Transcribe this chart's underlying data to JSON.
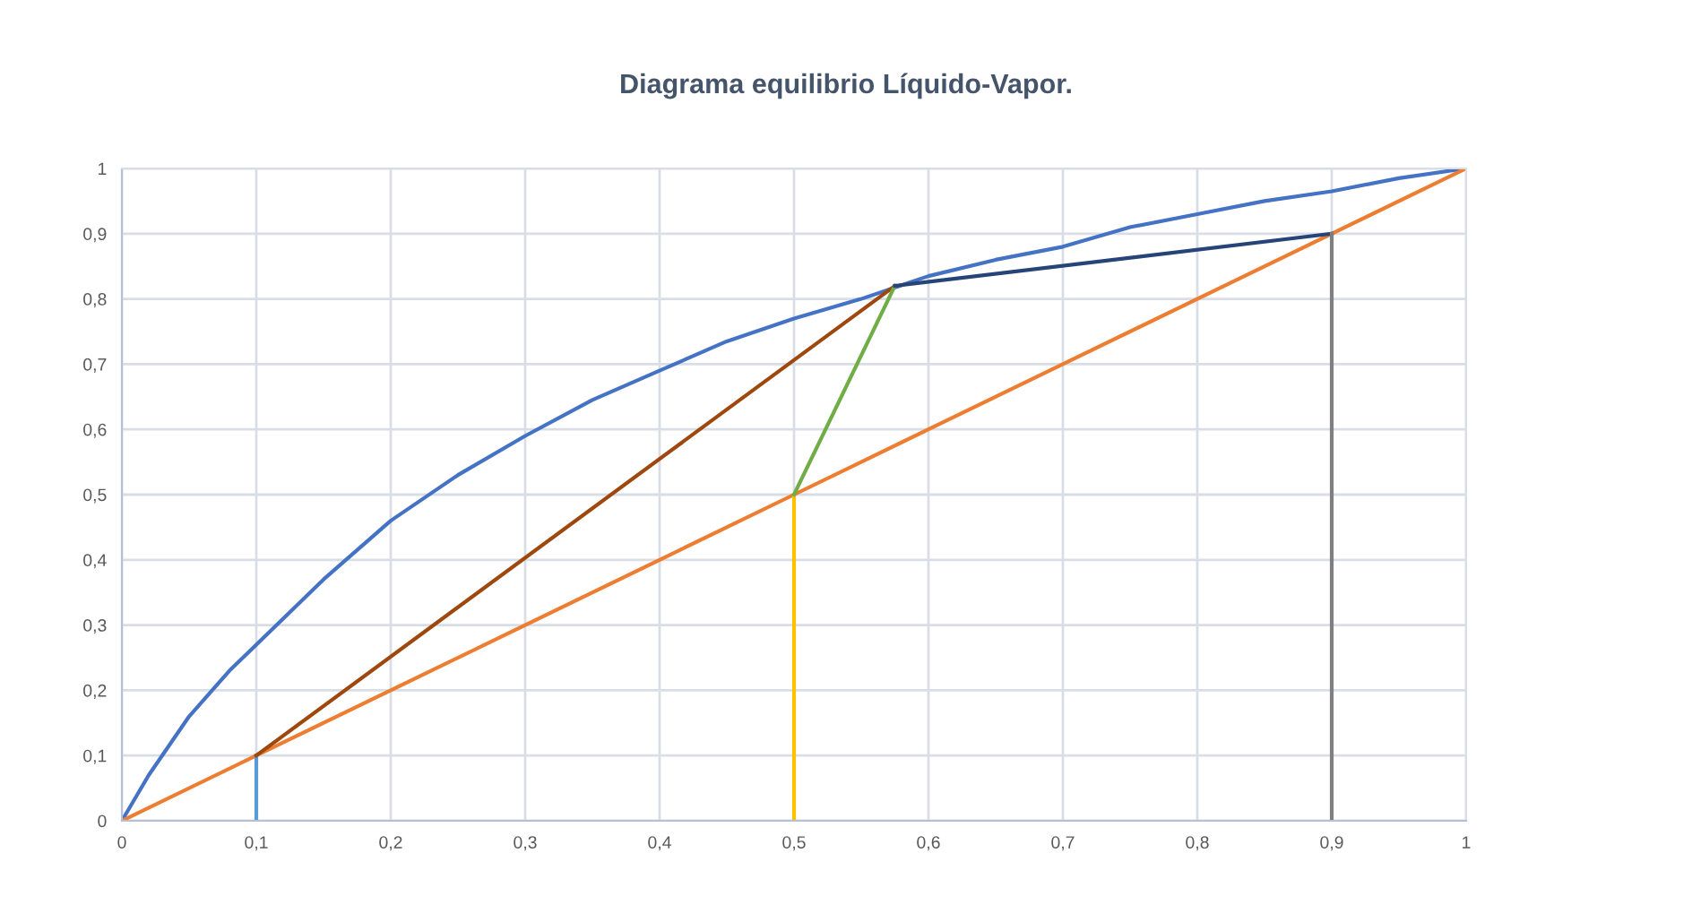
{
  "chart_data": {
    "type": "line",
    "title": "Diagrama equilibrio Líquido-Vapor.",
    "xlim": [
      0,
      1
    ],
    "ylim": [
      0,
      1
    ],
    "xticks": [
      0,
      {
        "value": 0.1,
        "label": "0,1"
      },
      {
        "value": 0.2,
        "label": "0,2"
      },
      {
        "value": 0.3,
        "label": "0,3"
      },
      {
        "value": 0.4,
        "label": "0,4"
      },
      {
        "value": 0.5,
        "label": "0,5"
      },
      {
        "value": 0.6,
        "label": "0,6"
      },
      {
        "value": 0.7,
        "label": "0,7"
      },
      {
        "value": 0.8,
        "label": "0,8"
      },
      {
        "value": 0.9,
        "label": "0,9"
      },
      1
    ],
    "yticks": [
      0,
      {
        "value": 0.1,
        "label": "0,1"
      },
      {
        "value": 0.2,
        "label": "0,2"
      },
      {
        "value": 0.3,
        "label": "0,3"
      },
      {
        "value": 0.4,
        "label": "0,4"
      },
      {
        "value": 0.5,
        "label": "0,5"
      },
      {
        "value": 0.6,
        "label": "0,6"
      },
      {
        "value": 0.7,
        "label": "0,7"
      },
      {
        "value": 0.8,
        "label": "0,8"
      },
      {
        "value": 0.9,
        "label": "0,9"
      },
      1
    ],
    "grid": true,
    "marker": "none",
    "line_style": "solid",
    "series": [
      {
        "color": "#4472c4",
        "x": [
          0,
          0.02,
          0.05,
          0.08,
          0.1,
          0.15,
          0.2,
          0.25,
          0.3,
          0.35,
          0.4,
          0.45,
          0.5,
          0.55,
          0.6,
          0.65,
          0.7,
          0.75,
          0.8,
          0.85,
          0.9,
          0.95,
          1
        ],
        "values": [
          0,
          0.07,
          0.16,
          0.23,
          0.27,
          0.37,
          0.46,
          0.53,
          0.59,
          0.645,
          0.69,
          0.735,
          0.77,
          0.8,
          0.835,
          0.86,
          0.88,
          0.91,
          0.93,
          0.95,
          0.965,
          0.985,
          1
        ]
      },
      {
        "color": "#ed7d31",
        "x": [
          0,
          0.1,
          0.2,
          0.3,
          0.4,
          0.5,
          0.6,
          0.7,
          0.8,
          0.9,
          1
        ],
        "values": [
          0,
          0.1,
          0.2,
          0.3,
          0.4,
          0.5,
          0.6,
          0.7,
          0.8,
          0.9,
          1
        ]
      },
      {
        "color": "#5b9bd5",
        "x": [
          0.1,
          0.1
        ],
        "values": [
          0,
          0.1
        ]
      },
      {
        "color": "#9e480e",
        "x": [
          0.1,
          0.575
        ],
        "values": [
          0.1,
          0.82
        ]
      },
      {
        "color": "#ffc000",
        "x": [
          0.5,
          0.5
        ],
        "values": [
          0,
          0.5
        ]
      },
      {
        "color": "#70ad47",
        "x": [
          0.5,
          0.575
        ],
        "values": [
          0.5,
          0.82
        ]
      },
      {
        "color": "#264478",
        "x": [
          0.575,
          0.9
        ],
        "values": [
          0.82,
          0.9
        ]
      },
      {
        "color": "#7f7f7f",
        "x": [
          0.9,
          0.9
        ],
        "values": [
          0,
          0.9
        ]
      }
    ]
  }
}
